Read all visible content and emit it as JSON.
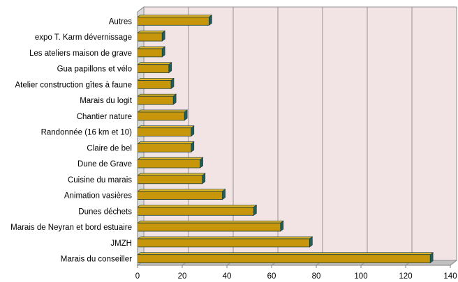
{
  "chart_data": {
    "type": "bar",
    "orientation": "horizontal",
    "categories": [
      "Autres",
      "expo T. Karm dévernissage",
      "Les ateliers maison de grave",
      "Gua papillons et vélo",
      "Atelier construction gîtes à faune",
      "Marais du logit",
      "Chantier nature",
      "Randonnée (16 km et 10)",
      "Claire de bel",
      "Dune de Grave",
      "Cuisine du marais",
      "Animation vasières",
      "Dunes déchets",
      "Marais de Neyran et bord estuaire",
      "JMZH",
      "Marais du conseiller"
    ],
    "values": [
      32,
      11,
      11,
      14,
      15,
      16,
      21,
      24,
      24,
      28,
      29,
      38,
      52,
      64,
      77,
      131
    ],
    "xlim": [
      0,
      140
    ],
    "xticks": [
      0,
      20,
      40,
      60,
      80,
      100,
      120,
      140
    ],
    "title": "",
    "xlabel": "",
    "ylabel": "",
    "grid": "vertical",
    "legend": "none",
    "colors": {
      "bar_front": "#c8960a",
      "bar_top": "#e0b52c",
      "bar_side": "#1f5f5a",
      "bar_edge": "#1a3d3a",
      "plot_back": "#f2e4e4",
      "plot_floor": "#c0c0c0",
      "gridline": "#8c8c8c",
      "axis": "#7f7f7f"
    }
  }
}
